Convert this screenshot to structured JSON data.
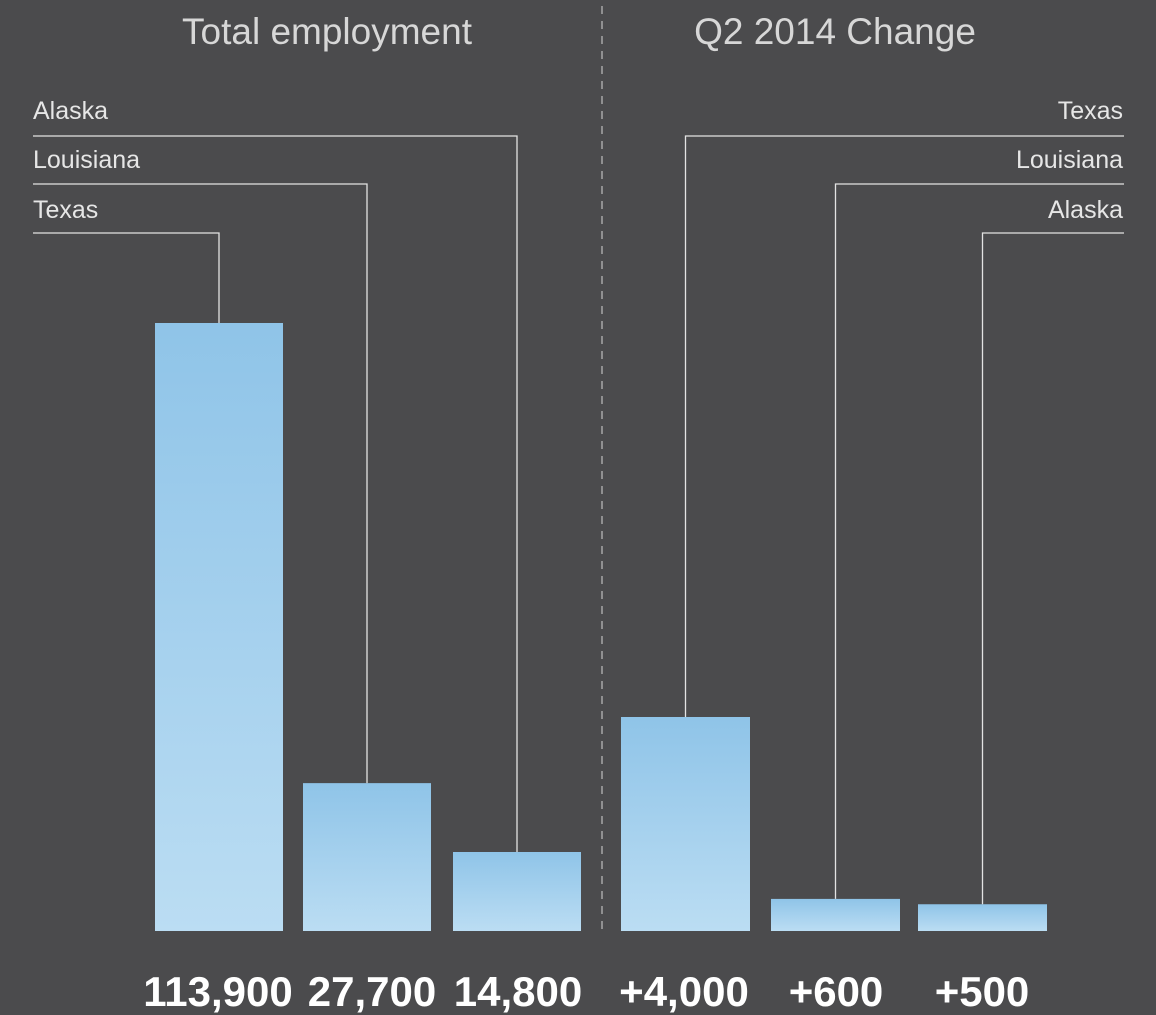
{
  "colors": {
    "background": "#4b4b4d",
    "bar_top": "#8fc4e8",
    "bar_bottom": "#bbddf3",
    "text": "#ffffff",
    "leader": "#e3e3e3"
  },
  "chart_data": [
    {
      "type": "bar",
      "title": "Total employment",
      "categories": [
        "Texas",
        "Louisiana",
        "Alaska"
      ],
      "values": [
        113900,
        27700,
        14800
      ],
      "value_labels": [
        "113,900",
        "27,700",
        "14,800"
      ],
      "legend": "leader-line labels, left-aligned"
    },
    {
      "type": "bar",
      "title": "Q2 2014 Change",
      "categories": [
        "Texas",
        "Louisiana",
        "Alaska"
      ],
      "values": [
        4000,
        600,
        500
      ],
      "value_labels": [
        "+4,000",
        "+600",
        "+500"
      ],
      "legend": "leader-line labels, right-aligned"
    }
  ]
}
